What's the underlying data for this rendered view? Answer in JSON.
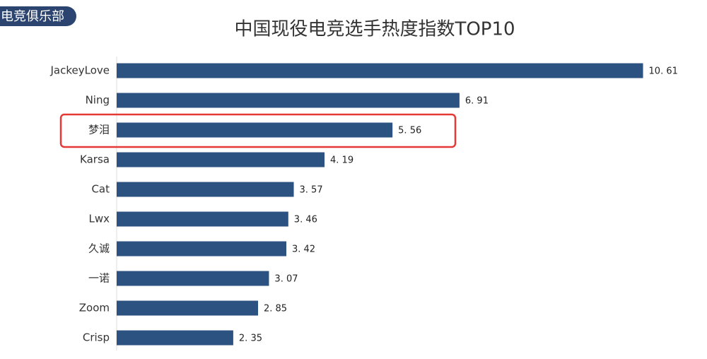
{
  "watermark": "电竞俱乐部",
  "chart_data": {
    "type": "bar",
    "orientation": "horizontal",
    "title": "中国现役电竞选手热度指数TOP10",
    "categories": [
      "JackeyLove",
      "Ning",
      "梦泪",
      "Karsa",
      "Cat",
      "Lwx",
      "久诚",
      "一诺",
      "Zoom",
      "Crisp"
    ],
    "values": [
      10.61,
      6.91,
      5.56,
      4.19,
      3.57,
      3.46,
      3.42,
      3.07,
      2.85,
      2.35
    ],
    "value_labels": [
      "10. 61",
      "6. 91",
      "5. 56",
      "4. 19",
      "3. 57",
      "3. 46",
      "3. 42",
      "3. 07",
      "2. 85",
      "2. 35"
    ],
    "color": "#2c5282",
    "xlim": [
      0,
      11.5
    ]
  }
}
